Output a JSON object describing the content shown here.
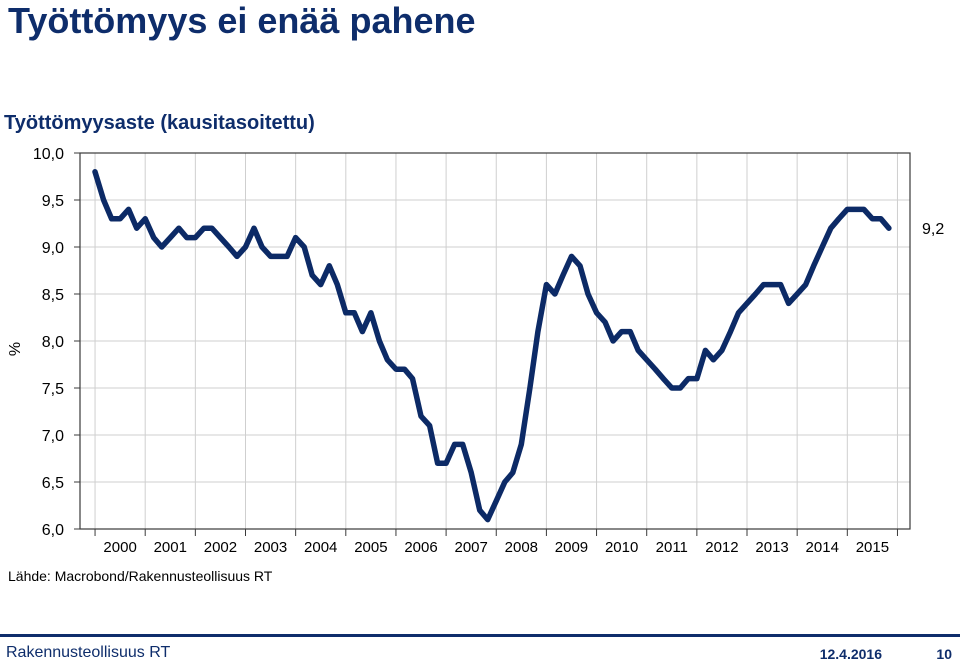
{
  "slide": {
    "title": "Työttömyys ei enää pahene"
  },
  "chart_data": {
    "type": "line",
    "title": "Työttömyysaste (kausitasoitettu)",
    "ylabel": "%",
    "xlabel": "",
    "ylim": [
      6.0,
      10.0
    ],
    "xlim": [
      1999.7,
      2016.25
    ],
    "yticks": [
      "6,0",
      "6,5",
      "7,0",
      "7,5",
      "8,0",
      "8,5",
      "9,0",
      "9,5",
      "10,0"
    ],
    "ytick_values": [
      6.0,
      6.5,
      7.0,
      7.5,
      8.0,
      8.5,
      9.0,
      9.5,
      10.0
    ],
    "xticks": [
      "2000",
      "2001",
      "2002",
      "2003",
      "2004",
      "2005",
      "2006",
      "2007",
      "2008",
      "2009",
      "2010",
      "2011",
      "2012",
      "2013",
      "2014",
      "2015"
    ],
    "grid": true,
    "last_value_label": "9,2",
    "series": [
      {
        "color": "#0c2a66",
        "points": [
          [
            2000.0,
            9.8
          ],
          [
            2000.17,
            9.5
          ],
          [
            2000.33,
            9.3
          ],
          [
            2000.5,
            9.3
          ],
          [
            2000.67,
            9.4
          ],
          [
            2000.83,
            9.2
          ],
          [
            2001.0,
            9.3
          ],
          [
            2001.17,
            9.1
          ],
          [
            2001.33,
            9.0
          ],
          [
            2001.5,
            9.1
          ],
          [
            2001.67,
            9.2
          ],
          [
            2001.83,
            9.1
          ],
          [
            2002.0,
            9.1
          ],
          [
            2002.17,
            9.2
          ],
          [
            2002.33,
            9.2
          ],
          [
            2002.5,
            9.1
          ],
          [
            2002.67,
            9.0
          ],
          [
            2002.83,
            8.9
          ],
          [
            2003.0,
            9.0
          ],
          [
            2003.17,
            9.2
          ],
          [
            2003.33,
            9.0
          ],
          [
            2003.5,
            8.9
          ],
          [
            2003.67,
            8.9
          ],
          [
            2003.83,
            8.9
          ],
          [
            2004.0,
            9.1
          ],
          [
            2004.17,
            9.0
          ],
          [
            2004.33,
            8.7
          ],
          [
            2004.5,
            8.6
          ],
          [
            2004.67,
            8.8
          ],
          [
            2004.83,
            8.6
          ],
          [
            2005.0,
            8.3
          ],
          [
            2005.17,
            8.3
          ],
          [
            2005.33,
            8.1
          ],
          [
            2005.5,
            8.3
          ],
          [
            2005.67,
            8.0
          ],
          [
            2005.83,
            7.8
          ],
          [
            2006.0,
            7.7
          ],
          [
            2006.17,
            7.7
          ],
          [
            2006.33,
            7.6
          ],
          [
            2006.5,
            7.2
          ],
          [
            2006.67,
            7.1
          ],
          [
            2006.83,
            6.7
          ],
          [
            2007.0,
            6.7
          ],
          [
            2007.17,
            6.9
          ],
          [
            2007.33,
            6.9
          ],
          [
            2007.5,
            6.6
          ],
          [
            2007.67,
            6.2
          ],
          [
            2007.83,
            6.1
          ],
          [
            2008.0,
            6.3
          ],
          [
            2008.17,
            6.5
          ],
          [
            2008.33,
            6.6
          ],
          [
            2008.5,
            6.9
          ],
          [
            2008.67,
            7.5
          ],
          [
            2008.83,
            8.1
          ],
          [
            2009.0,
            8.6
          ],
          [
            2009.17,
            8.5
          ],
          [
            2009.33,
            8.7
          ],
          [
            2009.5,
            8.9
          ],
          [
            2009.67,
            8.8
          ],
          [
            2009.83,
            8.5
          ],
          [
            2010.0,
            8.3
          ],
          [
            2010.17,
            8.2
          ],
          [
            2010.33,
            8.0
          ],
          [
            2010.5,
            8.1
          ],
          [
            2010.67,
            8.1
          ],
          [
            2010.83,
            7.9
          ],
          [
            2011.0,
            7.8
          ],
          [
            2011.17,
            7.7
          ],
          [
            2011.33,
            7.6
          ],
          [
            2011.5,
            7.5
          ],
          [
            2011.67,
            7.5
          ],
          [
            2011.83,
            7.6
          ],
          [
            2012.0,
            7.6
          ],
          [
            2012.17,
            7.9
          ],
          [
            2012.33,
            7.8
          ],
          [
            2012.5,
            7.9
          ],
          [
            2012.67,
            8.1
          ],
          [
            2012.83,
            8.3
          ],
          [
            2013.0,
            8.4
          ],
          [
            2013.17,
            8.5
          ],
          [
            2013.33,
            8.6
          ],
          [
            2013.5,
            8.6
          ],
          [
            2013.67,
            8.6
          ],
          [
            2013.83,
            8.4
          ],
          [
            2014.0,
            8.5
          ],
          [
            2014.17,
            8.6
          ],
          [
            2014.33,
            8.8
          ],
          [
            2014.5,
            9.0
          ],
          [
            2014.67,
            9.2
          ],
          [
            2014.83,
            9.3
          ],
          [
            2015.0,
            9.4
          ],
          [
            2015.17,
            9.4
          ],
          [
            2015.33,
            9.4
          ],
          [
            2015.5,
            9.3
          ],
          [
            2015.67,
            9.3
          ],
          [
            2015.83,
            9.2
          ]
        ]
      }
    ]
  },
  "source": "Lähde: Macrobond/Rakennusteollisuus RT",
  "footer": {
    "organization": "Rakennusteollisuus RT",
    "date": "12.4.2016",
    "page": "10"
  }
}
